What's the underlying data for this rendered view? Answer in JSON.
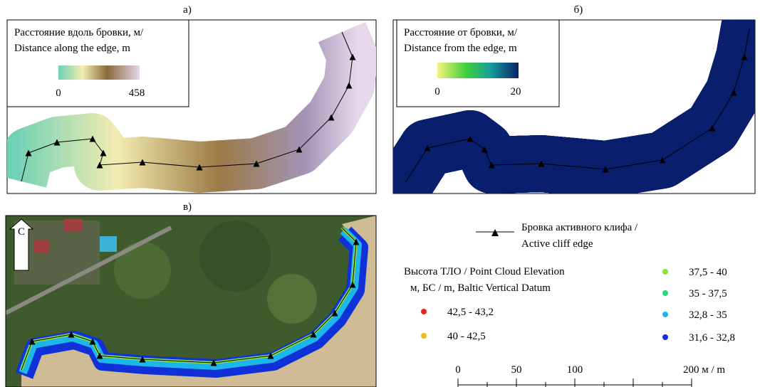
{
  "panels": [
    {
      "label": "а)",
      "legend": {
        "title": [
          "Расстояние вдоль бровки, м/",
          "Distance along the edge, m"
        ],
        "min": "0",
        "max": "458"
      }
    },
    {
      "label": "б)",
      "legend": {
        "title": [
          "Расстояние от бровки, м/",
          "Distance from the edge, m"
        ],
        "min": "0",
        "max": "20"
      }
    },
    {
      "label": "в)",
      "compass": "С"
    }
  ],
  "legend": {
    "edge": [
      "Бровка активного клифа /",
      "Active cliff edge"
    ],
    "elevation_title": [
      "Высота ТЛО / Point Cloud Elevation",
      "м, БС / m, Baltic Vertical Datum"
    ],
    "classes": [
      {
        "label": "42,5 - 43,2",
        "color": "#e8231f"
      },
      {
        "label": "40 - 42,5",
        "color": "#f2b91c"
      },
      {
        "label": "37,5 - 40",
        "color": "#8fe03a"
      },
      {
        "label": "35 - 37,5",
        "color": "#2ed67c"
      },
      {
        "label": "32,8 - 35",
        "color": "#1cb6e8"
      },
      {
        "label": "31,6 - 32,8",
        "color": "#1030d8"
      }
    ],
    "scale_bar": [
      "0",
      "50",
      "100",
      "200 м / m"
    ]
  }
}
